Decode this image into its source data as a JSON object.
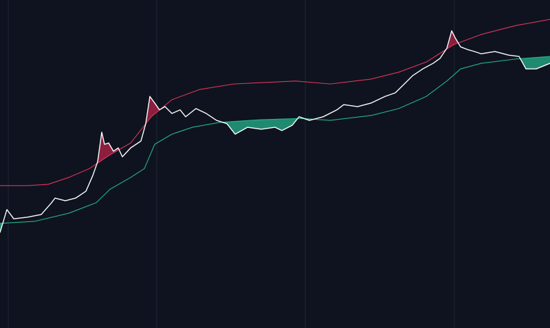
{
  "chart_data": {
    "type": "line",
    "xlim": [
      0,
      100
    ],
    "ylim": [
      0,
      100
    ],
    "xticks": [
      1.5,
      28.5,
      55.5,
      82.6
    ],
    "grid": true,
    "background": "#0e131f",
    "series": [
      {
        "color": "#ffffff",
        "x": [
          0,
          1.25,
          2.5,
          5,
          7.5,
          9.375,
          10,
          11.875,
          13.75,
          15.625,
          16.875,
          17.75,
          18.5,
          19,
          19.75,
          20.625,
          21.5,
          22.25,
          23.75,
          25.625,
          26.5,
          27.25,
          28.125,
          29,
          30,
          31.25,
          32.75,
          33.75,
          35.625,
          37.5,
          39.375,
          41.25,
          42.75,
          45,
          47.5,
          50,
          51.25,
          53.125,
          54.375,
          56.25,
          58.75,
          61.25,
          62.5,
          65,
          67.5,
          70,
          71.875,
          73.75,
          75,
          76.875,
          78.75,
          80,
          81.25,
          82.125,
          82.75,
          83.75,
          85,
          86.25,
          87.5,
          90,
          92.5,
          94.375,
          95.625,
          97.5,
          100
        ],
        "values": [
          29.1,
          36.1,
          33.3,
          33.8,
          34.6,
          38.2,
          39.6,
          38.8,
          39.6,
          41.7,
          46.5,
          50.7,
          59.7,
          56.0,
          56.4,
          53.9,
          54.9,
          52.2,
          54.9,
          57.0,
          62.3,
          70.6,
          68.6,
          66.5,
          67.5,
          65.4,
          66.5,
          64.4,
          66.9,
          65.4,
          63.3,
          62.3,
          59.1,
          61.2,
          60.6,
          61.2,
          60.2,
          61.8,
          64.4,
          63.3,
          64.4,
          66.5,
          68.1,
          67.5,
          68.6,
          70.6,
          71.7,
          74.8,
          76.9,
          79.0,
          80.7,
          82.2,
          85.3,
          90.6,
          88.5,
          85.7,
          84.9,
          84.3,
          83.6,
          84.3,
          83.2,
          82.8,
          79.0,
          79.0,
          80.7
        ]
      },
      {
        "color": "#e0365a",
        "fill_color": "#8a1f3e",
        "band": "upper",
        "x": [
          0,
          5,
          8.75,
          12.5,
          16.25,
          20,
          23.75,
          27.5,
          31.25,
          36.25,
          42.5,
          53.75,
          60,
          67.5,
          72.5,
          77.5,
          82.5,
          87.5,
          93.75,
          100
        ],
        "values": [
          43.4,
          43.4,
          43.8,
          45.9,
          48.6,
          52.8,
          56.4,
          64.4,
          69.6,
          72.7,
          74.4,
          75.3,
          74.4,
          75.9,
          78.0,
          81.1,
          86.4,
          89.5,
          92.2,
          94.1
        ]
      },
      {
        "color": "#2ab38a",
        "fill_color": "#1f8a70",
        "band": "lower",
        "x": [
          0,
          6.25,
          12.5,
          17.5,
          20,
          23.75,
          26.25,
          28.125,
          31.25,
          35,
          40,
          47.5,
          55,
          60,
          67.5,
          72.5,
          77.5,
          81.25,
          83.75,
          87.5,
          93.75,
          100
        ],
        "values": [
          31.9,
          32.5,
          35.0,
          38.2,
          42.3,
          45.9,
          48.6,
          56.0,
          59.1,
          61.2,
          62.7,
          63.5,
          63.9,
          63.3,
          64.8,
          66.9,
          70.6,
          75.3,
          79.0,
          80.7,
          82.0,
          82.8
        ]
      }
    ]
  }
}
